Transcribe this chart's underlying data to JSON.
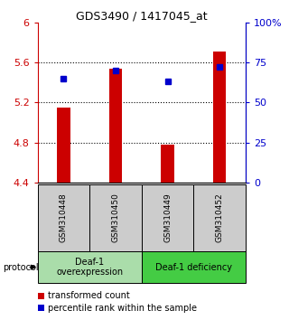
{
  "title": "GDS3490 / 1417045_at",
  "samples": [
    "GSM310448",
    "GSM310450",
    "GSM310449",
    "GSM310452"
  ],
  "red_values": [
    5.15,
    5.535,
    4.775,
    5.71
  ],
  "blue_values": [
    65,
    70,
    63,
    72
  ],
  "ylim_left": [
    4.4,
    6.0
  ],
  "ylim_right": [
    0,
    100
  ],
  "yticks_left": [
    4.4,
    4.8,
    5.2,
    5.6,
    6.0
  ],
  "ytick_labels_left": [
    "4.4",
    "4.8",
    "5.2",
    "5.6",
    "6"
  ],
  "yticks_right": [
    0,
    25,
    50,
    75,
    100
  ],
  "ytick_labels_right": [
    "0",
    "25",
    "50",
    "75",
    "100%"
  ],
  "bar_color": "#cc0000",
  "dot_color": "#0000cc",
  "groups": [
    {
      "label": "Deaf-1\noverexpression",
      "color": "#aaddaa"
    },
    {
      "label": "Deaf-1 deficiency",
      "color": "#44cc44"
    }
  ],
  "protocol_label": "protocol",
  "legend_bar_label": "transformed count",
  "legend_dot_label": "percentile rank within the sample",
  "bar_width": 0.25,
  "base_value": 4.4
}
